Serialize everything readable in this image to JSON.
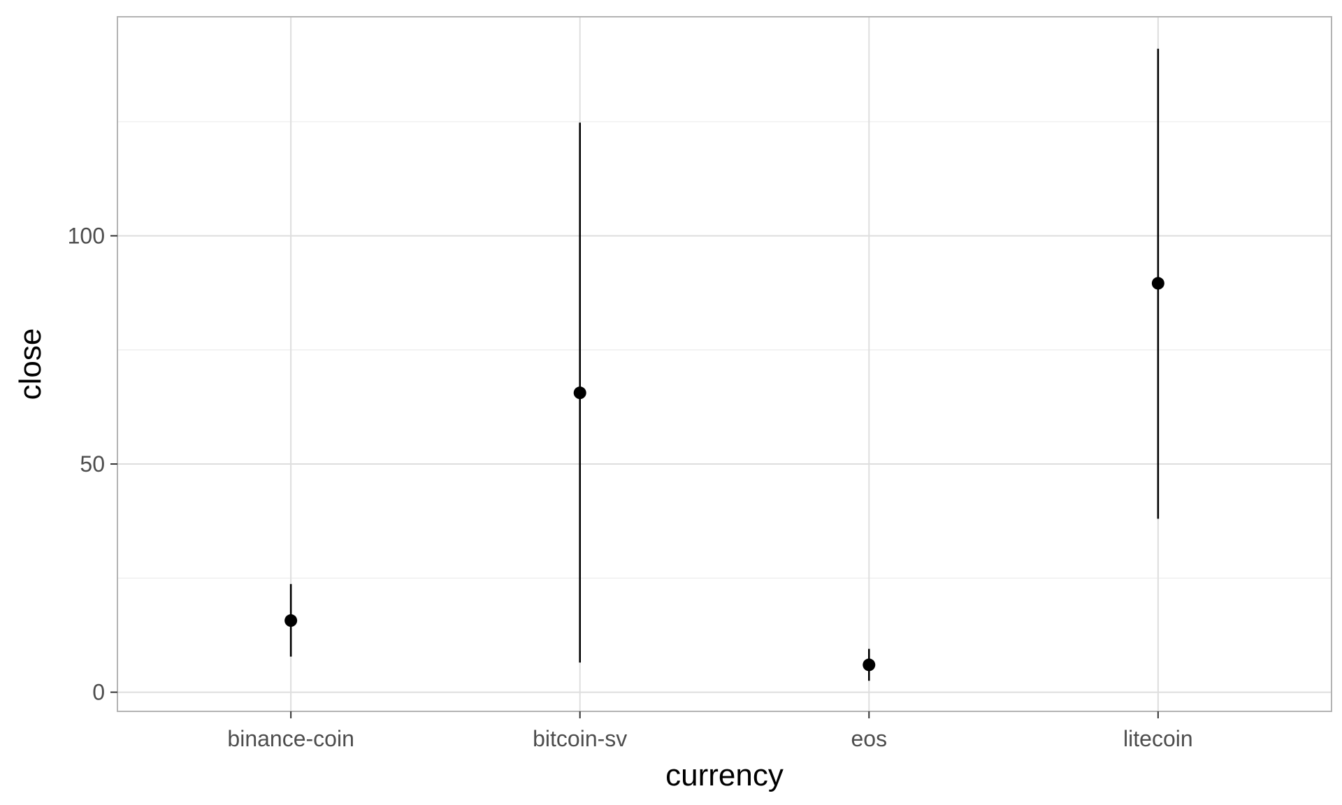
{
  "chart_data": {
    "type": "pointrange",
    "title": "",
    "xlabel": "currency",
    "ylabel": "close",
    "categories": [
      "binance-coin",
      "bitcoin-sv",
      "eos",
      "litecoin"
    ],
    "points": [
      {
        "category": "binance-coin",
        "y": 15.7,
        "ymin": 7.8,
        "ymax": 23.7
      },
      {
        "category": "bitcoin-sv",
        "y": 65.6,
        "ymin": 6.5,
        "ymax": 124.8
      },
      {
        "category": "eos",
        "y": 6.0,
        "ymin": 2.5,
        "ymax": 9.5
      },
      {
        "category": "litecoin",
        "y": 89.6,
        "ymin": 38.0,
        "ymax": 141.0
      }
    ],
    "yticks": [
      0,
      50,
      100
    ],
    "ylim": [
      -4.2,
      148.0
    ],
    "grid": true,
    "legend": "none",
    "colors": {
      "point": "#000000",
      "panel_border": "#b3b3b3",
      "grid_major": "#dedede",
      "grid_minor": "#ececec"
    }
  }
}
